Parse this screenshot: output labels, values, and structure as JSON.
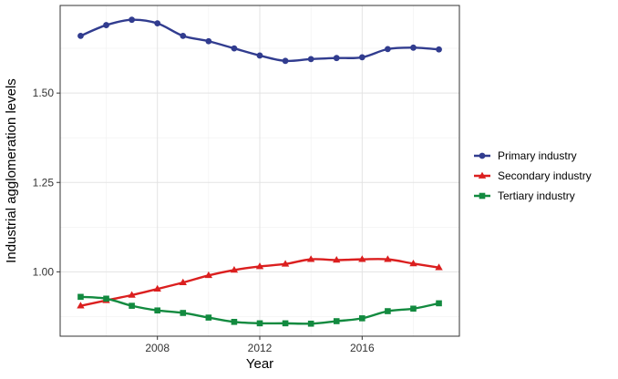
{
  "chart_data": {
    "type": "line",
    "title": "",
    "xlabel": "Year",
    "ylabel": "Industrial agglomeration levels",
    "x": [
      2005,
      2006,
      2007,
      2008,
      2009,
      2010,
      2011,
      2012,
      2013,
      2014,
      2015,
      2016,
      2017,
      2018,
      2019
    ],
    "xlim": [
      2004.2,
      2019.8
    ],
    "ylim": [
      0.82,
      1.745
    ],
    "x_ticks": [
      2008,
      2012,
      2016
    ],
    "x_tick_labels": [
      "2008",
      "2012",
      "2016"
    ],
    "y_ticks": [
      1.0,
      1.25,
      1.5
    ],
    "y_tick_labels": [
      "1.00",
      "1.25",
      "1.50"
    ],
    "grid": true,
    "legend_position": "right",
    "series": [
      {
        "name": "Primary industry",
        "color": "#313C8F",
        "marker": "circle",
        "values": [
          1.66,
          1.69,
          1.705,
          1.695,
          1.66,
          1.645,
          1.625,
          1.605,
          1.59,
          1.595,
          1.598,
          1.6,
          1.623,
          1.627,
          1.622
        ]
      },
      {
        "name": "Secondary industry",
        "color": "#DB1F1F",
        "marker": "triangle",
        "values": [
          0.905,
          0.92,
          0.935,
          0.952,
          0.97,
          0.99,
          1.005,
          1.015,
          1.022,
          1.035,
          1.033,
          1.035,
          1.035,
          1.023,
          1.012
        ]
      },
      {
        "name": "Tertiary industry",
        "color": "#128A3F",
        "marker": "square",
        "values": [
          0.93,
          0.925,
          0.905,
          0.892,
          0.885,
          0.872,
          0.86,
          0.856,
          0.856,
          0.855,
          0.862,
          0.87,
          0.89,
          0.897,
          0.912
        ]
      }
    ]
  }
}
